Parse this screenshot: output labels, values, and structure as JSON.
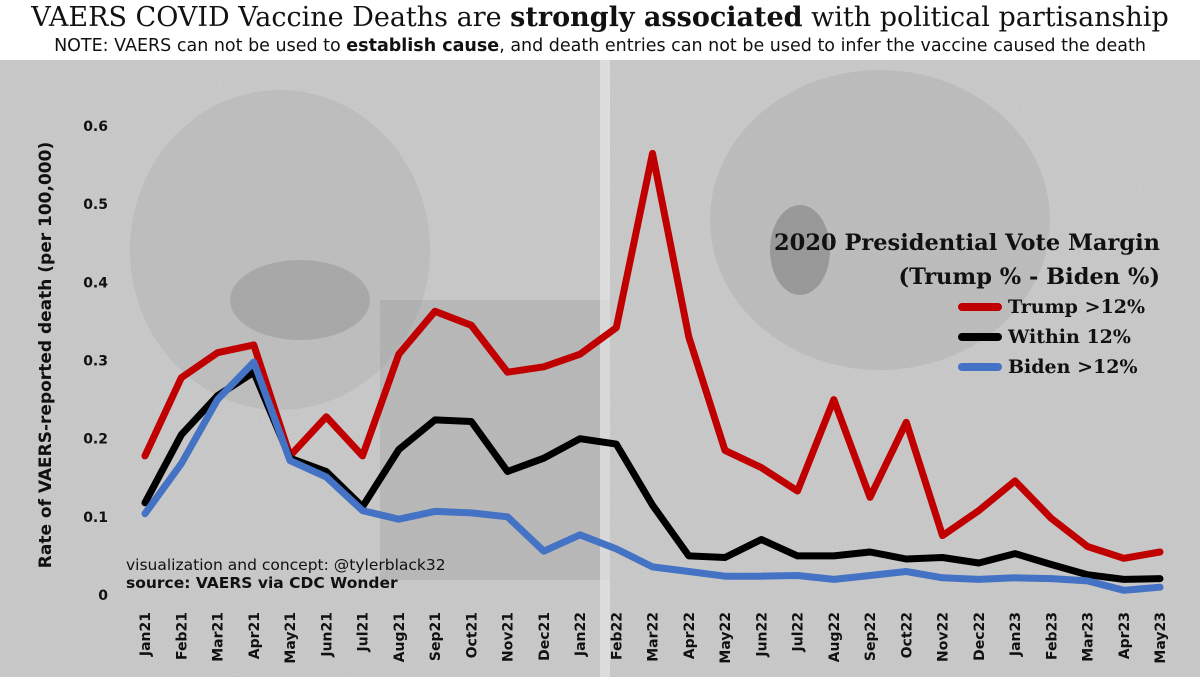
{
  "header": {
    "title_pre": "VAERS COVID Vaccine Deaths are ",
    "title_bold": "strongly associated",
    "title_post": " with political partisanship",
    "note_pre": "NOTE: VAERS can not be used to ",
    "note_bold": "establish cause",
    "note_post": ", and death entries can not be used to infer the vaccine caused the death"
  },
  "credit": "visualization and concept: @tylerblack32",
  "source": "source: VAERS via CDC Wonder",
  "legend": {
    "title_line1": "2020 Presidential Vote Margin",
    "title_line2": "(Trump % - Biden %)"
  },
  "chart_data": {
    "type": "line",
    "title": "VAERS COVID Vaccine Deaths are strongly associated with political partisanship",
    "xlabel": "",
    "ylabel": "Rate of VAERS-reported death (per 100,000)",
    "ylim": [
      0,
      0.6
    ],
    "y_ticks": [
      "0",
      "0.1",
      "0.2",
      "0.3",
      "0.4",
      "0.5",
      "0.6"
    ],
    "grid": false,
    "legend_position": "right",
    "categories": [
      "Jan21",
      "Feb21",
      "Mar21",
      "Apr21",
      "May21",
      "Jun21",
      "Jul21",
      "Aug21",
      "Sep21",
      "Oct21",
      "Nov21",
      "Dec21",
      "Jan22",
      "Feb22",
      "Mar22",
      "Apr22",
      "May22",
      "Jun22",
      "Jul22",
      "Aug22",
      "Sep22",
      "Oct22",
      "Nov22",
      "Dec22",
      "Jan23",
      "Feb23",
      "Mar23",
      "Apr23",
      "May23"
    ],
    "series": [
      {
        "name": "Trump >12%",
        "color": "#c00000",
        "values": [
          0.178,
          0.278,
          0.31,
          0.32,
          0.178,
          0.228,
          0.178,
          0.308,
          0.363,
          0.345,
          0.285,
          0.292,
          0.308,
          0.342,
          0.565,
          0.33,
          0.185,
          0.163,
          0.133,
          0.25,
          0.125,
          0.221,
          0.076,
          0.108,
          0.146,
          0.098,
          0.062,
          0.047,
          0.055
        ]
      },
      {
        "name": "Within 12%",
        "color": "#000000",
        "values": [
          0.118,
          0.205,
          0.255,
          0.285,
          0.175,
          0.158,
          0.113,
          0.186,
          0.224,
          0.222,
          0.158,
          0.175,
          0.2,
          0.193,
          0.115,
          0.05,
          0.048,
          0.071,
          0.05,
          0.05,
          0.055,
          0.046,
          0.048,
          0.041,
          0.053,
          0.039,
          0.026,
          0.02,
          0.021
        ]
      },
      {
        "name": "Biden >12%",
        "color": "#4472c4",
        "values": [
          0.104,
          0.168,
          0.25,
          0.298,
          0.172,
          0.151,
          0.108,
          0.097,
          0.107,
          0.105,
          0.1,
          0.056,
          0.077,
          0.059,
          0.036,
          0.03,
          0.024,
          0.024,
          0.025,
          0.02,
          0.025,
          0.03,
          0.022,
          0.02,
          0.022,
          0.021,
          0.018,
          0.006,
          0.01
        ]
      }
    ]
  }
}
